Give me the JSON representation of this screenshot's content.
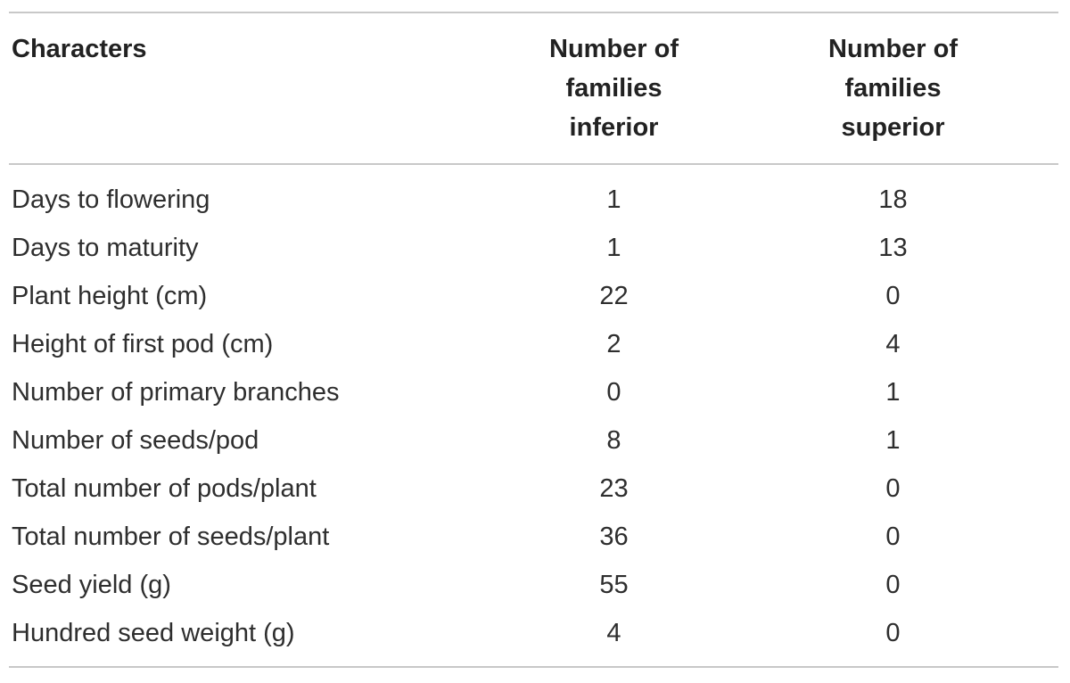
{
  "table": {
    "headers": {
      "characters": "Characters",
      "inferior": [
        "Number of",
        "families",
        "inferior"
      ],
      "superior": [
        "Number of",
        "families",
        "superior"
      ]
    },
    "rows": [
      {
        "character": "Days to flowering",
        "inferior": "1",
        "superior": "18"
      },
      {
        "character": "Days to maturity",
        "inferior": "1",
        "superior": "13"
      },
      {
        "character": "Plant height (cm)",
        "inferior": "22",
        "superior": "0"
      },
      {
        "character": "Height of first pod (cm)",
        "inferior": "2",
        "superior": "4"
      },
      {
        "character": "Number of primary branches",
        "inferior": "0",
        "superior": "1"
      },
      {
        "character": "Number of seeds/pod",
        "inferior": "8",
        "superior": "1"
      },
      {
        "character": "Total number of pods/plant",
        "inferior": "23",
        "superior": "0"
      },
      {
        "character": "Total number of seeds/plant",
        "inferior": "36",
        "superior": "0"
      },
      {
        "character": "Seed yield (g)",
        "inferior": "55",
        "superior": "0"
      },
      {
        "character": "Hundred seed weight (g)",
        "inferior": "4",
        "superior": "0"
      }
    ]
  }
}
